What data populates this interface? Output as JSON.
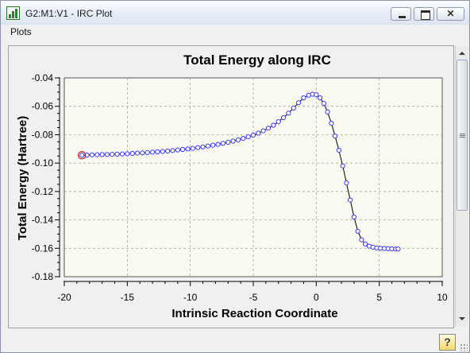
{
  "window": {
    "title": "G2:M1:V1 - IRC Plot",
    "menu": [
      "Plots"
    ],
    "help_label": "?"
  },
  "chart_data": {
    "type": "scatter",
    "title": "Total Energy along IRC",
    "xlabel": "Intrinsic Reaction Coordinate",
    "ylabel": "Total Energy (Hartree)",
    "xlim": [
      -20,
      10
    ],
    "ylim": [
      -0.18,
      -0.04
    ],
    "x_ticks": [
      -20,
      -15,
      -10,
      -5,
      0,
      5,
      10
    ],
    "y_ticks": [
      -0.04,
      -0.06,
      -0.08,
      -0.1,
      -0.12,
      -0.14,
      -0.16,
      -0.18
    ],
    "x_tick_labels": [
      "-20",
      "-15",
      "-10",
      "-5",
      "0",
      "5",
      "10"
    ],
    "y_tick_labels": [
      "-0.04",
      "-0.06",
      "-0.08",
      "-0.10",
      "-0.12",
      "-0.14",
      "-0.16",
      "-0.18"
    ],
    "grid": true,
    "marker": "circle-open",
    "colors": {
      "line": "#000000",
      "marker": "#3b3bff",
      "highlight": "#cc2222",
      "plot_bg": "#fafaf2"
    },
    "highlighted_point_index": 0,
    "series": [
      {
        "x": [
          -18.6,
          -18.2,
          -17.8,
          -17.4,
          -17.0,
          -16.6,
          -16.2,
          -15.8,
          -15.4,
          -15.0,
          -14.6,
          -14.2,
          -13.8,
          -13.4,
          -13.0,
          -12.6,
          -12.2,
          -11.8,
          -11.4,
          -11.0,
          -10.6,
          -10.2,
          -9.8,
          -9.4,
          -9.0,
          -8.6,
          -8.2,
          -7.8,
          -7.4,
          -7.0,
          -6.6,
          -6.2,
          -5.8,
          -5.4,
          -5.0,
          -4.6,
          -4.2,
          -3.8,
          -3.4,
          -3.0,
          -2.6,
          -2.2,
          -1.8,
          -1.4,
          -1.0,
          -0.6,
          -0.3,
          0.0,
          0.3,
          0.6,
          0.9,
          1.2,
          1.5,
          1.8,
          2.1,
          2.4,
          2.7,
          3.0,
          3.3,
          3.6,
          3.9,
          4.2,
          4.5,
          4.8,
          5.1,
          5.4,
          5.7,
          6.0,
          6.3,
          6.5
        ],
        "y": [
          -0.0945,
          -0.0943,
          -0.0942,
          -0.0941,
          -0.094,
          -0.0939,
          -0.0938,
          -0.0937,
          -0.0936,
          -0.0934,
          -0.0932,
          -0.093,
          -0.0928,
          -0.0926,
          -0.0923,
          -0.0921,
          -0.0918,
          -0.0915,
          -0.0912,
          -0.0908,
          -0.0904,
          -0.09,
          -0.0896,
          -0.0891,
          -0.0886,
          -0.088,
          -0.0874,
          -0.0868,
          -0.0861,
          -0.0853,
          -0.0845,
          -0.0836,
          -0.0826,
          -0.0815,
          -0.0803,
          -0.0789,
          -0.0773,
          -0.0754,
          -0.0733,
          -0.0708,
          -0.068,
          -0.0648,
          -0.0612,
          -0.0575,
          -0.054,
          -0.0522,
          -0.0515,
          -0.0518,
          -0.054,
          -0.058,
          -0.064,
          -0.072,
          -0.081,
          -0.091,
          -0.102,
          -0.114,
          -0.126,
          -0.138,
          -0.148,
          -0.154,
          -0.157,
          -0.1585,
          -0.1592,
          -0.1597,
          -0.16,
          -0.1602,
          -0.1603,
          -0.1604,
          -0.1605,
          -0.1605
        ]
      }
    ]
  }
}
